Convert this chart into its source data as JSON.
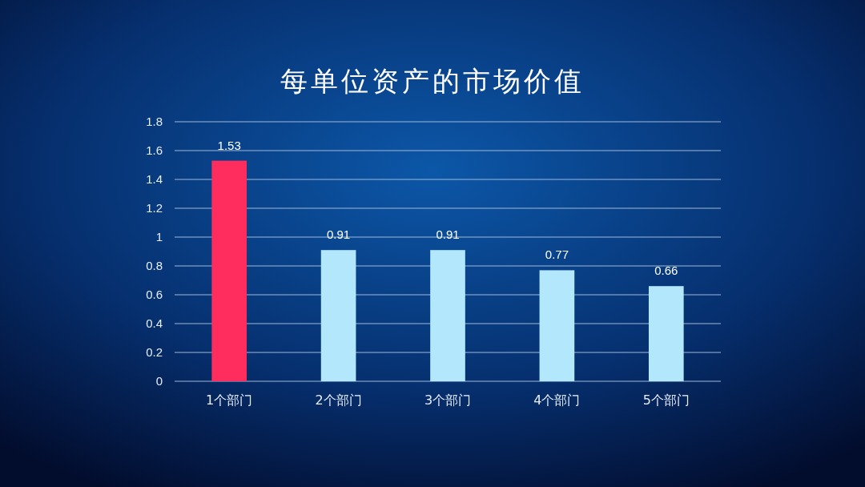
{
  "chart_data": {
    "type": "bar",
    "title": "每单位资产的市场价值",
    "categories": [
      "1个部门",
      "2个部门",
      "3个部门",
      "4个部门",
      "5个部门"
    ],
    "values": [
      1.53,
      0.91,
      0.91,
      0.77,
      0.66
    ],
    "colors": [
      "#ff2d5e",
      "#b3e8fc",
      "#b3e8fc",
      "#b3e8fc",
      "#b3e8fc"
    ],
    "ylim": [
      0,
      1.8
    ],
    "yticks": [
      0,
      0.2,
      0.4,
      0.6,
      0.8,
      1,
      1.2,
      1.4,
      1.6,
      1.8
    ],
    "grid": "y",
    "data_labels": true
  }
}
